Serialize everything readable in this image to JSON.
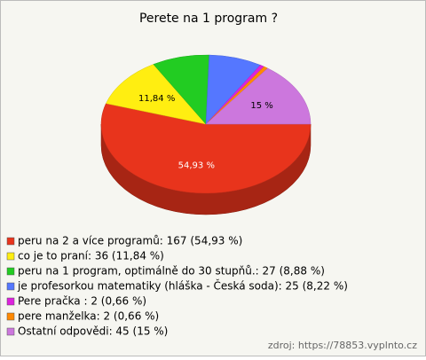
{
  "chart_data": {
    "type": "pie",
    "title": "Perete na 1 program ?",
    "categories": [
      "peru na 2 a více programů: 167 (54,93 %)",
      "co je to praní: 36 (11,84 %)",
      "peru na 1 program, optimálně do 30 stupňů.: 27 (8,88 %)",
      "je profesorkou matematiky (hláška - Česká soda): 25 (8,22 %)",
      "Pere pračka : 2 (0,66 %)",
      "pere manželka: 2 (0,66 %)",
      "Ostatní odpovědi: 45 (15 %)"
    ],
    "values": [
      54.93,
      11.84,
      8.88,
      8.22,
      0.66,
      0.66,
      15
    ],
    "value_labels": [
      "54,93 %",
      "11,84 %",
      null,
      null,
      null,
      null,
      "15 %"
    ],
    "colors": [
      "#e8341c",
      "#ffee11",
      "#22cc22",
      "#5577ff",
      "#dd22dd",
      "#ff8800",
      "#cc77dd"
    ],
    "source": "zdroj: https://78853.vyplnto.cz"
  }
}
